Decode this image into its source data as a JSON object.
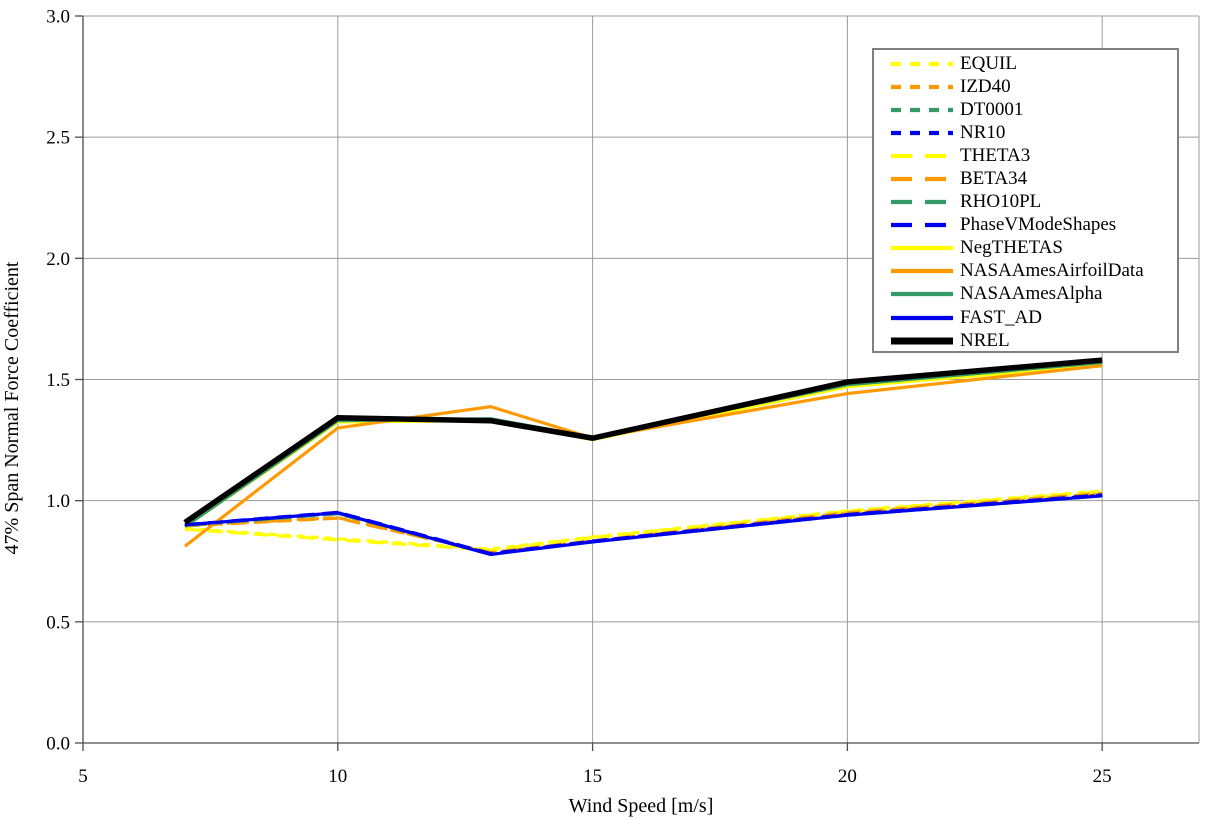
{
  "chart_data": {
    "type": "line",
    "title": "",
    "xlabel": "Wind Speed [m/s]",
    "ylabel": "47% Span Normal Force Coefficient",
    "x": [
      7,
      10,
      13,
      15,
      20,
      25
    ],
    "xlim": [
      5,
      26.9
    ],
    "ylim": [
      0,
      3
    ],
    "grid": true,
    "legend_position": "top-right",
    "series": [
      {
        "name": "EQUIL",
        "color": "#FFFF00",
        "dash": "short-dash",
        "width": 3.2,
        "values": [
          0.885,
          0.843,
          0.8,
          0.85,
          0.958,
          1.04
        ]
      },
      {
        "name": "IZD40",
        "color": "#FF9900",
        "dash": "short-dash",
        "width": 3.2,
        "values": [
          0.898,
          0.93,
          0.785,
          0.833,
          0.948,
          1.028
        ]
      },
      {
        "name": "DT0001",
        "color": "#339966",
        "dash": "short-dash",
        "width": 3.2,
        "values": [
          0.898,
          0.948,
          0.78,
          0.83,
          0.94,
          1.02
        ]
      },
      {
        "name": "NR10",
        "color": "#0000EE",
        "dash": "short-dash",
        "width": 3.2,
        "values": [
          0.9,
          0.95,
          0.78,
          0.832,
          0.942,
          1.022
        ]
      },
      {
        "name": "THETA3",
        "color": "#FFFF00",
        "dash": "long-dash",
        "width": 3.2,
        "values": [
          0.882,
          0.838,
          0.797,
          0.848,
          0.956,
          1.038
        ]
      },
      {
        "name": "BETA34",
        "color": "#FF9900",
        "dash": "long-dash",
        "width": 3.2,
        "values": [
          0.896,
          0.928,
          0.786,
          0.834,
          0.95,
          1.03
        ]
      },
      {
        "name": "RHO10PL",
        "color": "#339966",
        "dash": "long-dash",
        "width": 3.2,
        "values": [
          0.898,
          0.946,
          0.78,
          0.83,
          0.94,
          1.02
        ]
      },
      {
        "name": "PhaseVModeShapes",
        "color": "#0000EE",
        "dash": "long-dash",
        "width": 3.2,
        "values": [
          0.901,
          0.952,
          0.782,
          0.833,
          0.943,
          1.024
        ]
      },
      {
        "name": "NegTHETAS",
        "color": "#FFFF00",
        "dash": "solid",
        "width": 3.2,
        "values": [
          0.893,
          1.325,
          1.33,
          1.252,
          1.47,
          1.56
        ]
      },
      {
        "name": "NASAAmesAirfoilData",
        "color": "#FF9900",
        "dash": "solid",
        "width": 3.2,
        "values": [
          0.812,
          1.3,
          1.388,
          1.258,
          1.442,
          1.557
        ]
      },
      {
        "name": "NASAAmesAlpha",
        "color": "#339966",
        "dash": "solid",
        "width": 3.2,
        "values": [
          0.893,
          1.33,
          1.338,
          1.262,
          1.478,
          1.57
        ]
      },
      {
        "name": "FAST_AD",
        "color": "#0000EE",
        "dash": "solid",
        "width": 3.2,
        "values": [
          0.9,
          0.95,
          0.778,
          0.83,
          0.94,
          1.02
        ]
      },
      {
        "name": "NREL",
        "color": "#000000",
        "dash": "solid",
        "width": 5.5,
        "values": [
          0.91,
          1.342,
          1.33,
          1.258,
          1.49,
          1.58
        ]
      }
    ]
  },
  "axes": {
    "x": {
      "label": "Wind Speed [m/s]",
      "ticks": [
        5,
        10,
        15,
        20,
        25
      ],
      "tick_labels": [
        "5",
        "10",
        "15",
        "20",
        "25"
      ]
    },
    "y": {
      "label": "47% Span Normal Force Coefficient",
      "ticks": [
        0,
        0.5,
        1,
        1.5,
        2,
        2.5,
        3
      ],
      "tick_labels": [
        "0.0",
        "0.5",
        "1.0",
        "1.5",
        "2.0",
        "2.5",
        "3.0"
      ]
    }
  },
  "colors": {
    "background": "#FFFFFF",
    "gridline": "#9B9B9B",
    "axis": "#4D4D4D",
    "legend_border": "#7F7F7F",
    "text": "#000000"
  }
}
